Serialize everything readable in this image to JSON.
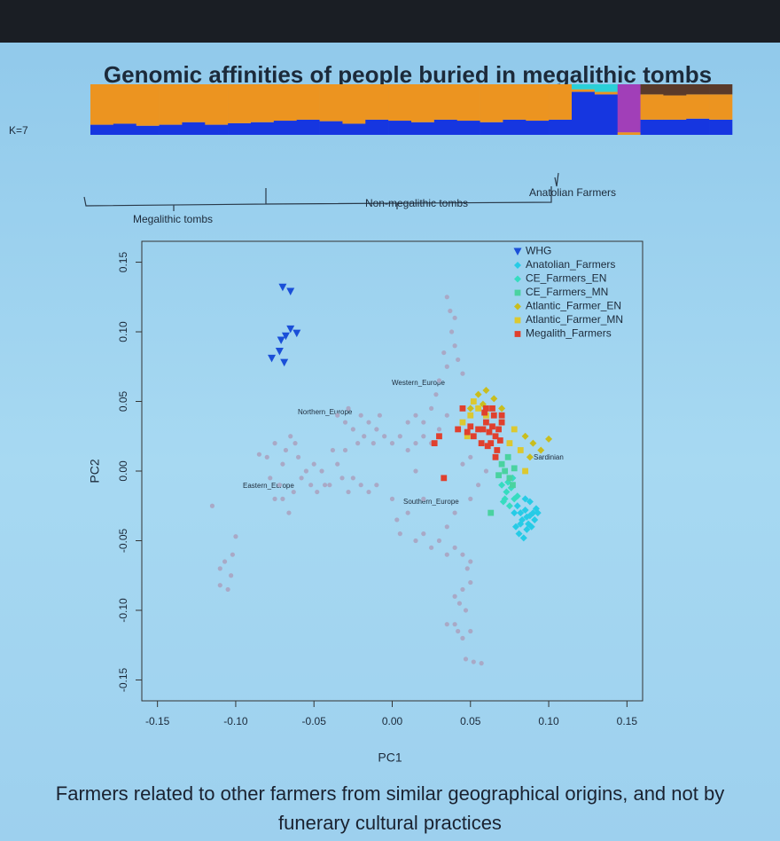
{
  "caption": "Farmers related to other farmers from similar geographical origins, and not by funerary cultural practices",
  "chart_data": [
    {
      "type": "bar",
      "stacked": true,
      "title": "Genomic affinities of people buried in megalithic tombs",
      "label": "K=7",
      "groups": [
        "Megalithic tombs",
        "Non-megalithic tombs",
        "Anatolian Farmers"
      ],
      "categories": [
        null,
        null,
        null,
        null,
        null,
        null,
        null,
        null,
        null,
        null,
        null,
        null,
        null,
        null,
        null,
        null,
        null,
        null,
        null,
        null,
        null,
        null,
        null,
        null,
        null,
        null,
        null,
        null
      ],
      "ylim": [
        0,
        1
      ],
      "series": [
        {
          "color": "#1636e0",
          "values": [
            0.2,
            0.22,
            0.18,
            0.2,
            0.25,
            0.2,
            0.23,
            0.25,
            0.28,
            0.3,
            0.27,
            0.22,
            0.3,
            0.28,
            0.25,
            0.3,
            0.28,
            0.25,
            0.3,
            0.28,
            0.3,
            0.85,
            0.8,
            0,
            0.3,
            0.3,
            0.32,
            0.3
          ]
        },
        {
          "color": "#ec9420",
          "values": [
            0.8,
            0.78,
            0.82,
            0.8,
            0.75,
            0.8,
            0.77,
            0.75,
            0.72,
            0.7,
            0.73,
            0.78,
            0.7,
            0.72,
            0.75,
            0.7,
            0.72,
            0.75,
            0.7,
            0.72,
            0.7,
            0.05,
            0.05,
            0.05,
            0.5,
            0.48,
            0.48,
            0.5
          ]
        },
        {
          "color": "#a13fb8",
          "values": [
            0,
            0,
            0,
            0,
            0,
            0,
            0,
            0,
            0,
            0,
            0,
            0,
            0,
            0,
            0,
            0,
            0,
            0,
            0,
            0,
            0,
            0,
            0,
            0.95,
            0,
            0,
            0,
            0
          ]
        },
        {
          "color": "#2ad0d8",
          "values": [
            0,
            0,
            0,
            0,
            0,
            0,
            0,
            0,
            0,
            0,
            0,
            0,
            0,
            0,
            0,
            0,
            0,
            0,
            0,
            0,
            0,
            0.1,
            0.15,
            0,
            0,
            0,
            0,
            0
          ]
        },
        {
          "color": "#5a3a2a",
          "values": [
            0,
            0,
            0,
            0,
            0,
            0,
            0,
            0,
            0,
            0,
            0,
            0,
            0,
            0,
            0,
            0,
            0,
            0,
            0,
            0,
            0,
            0,
            0,
            0,
            0.2,
            0.22,
            0.2,
            0.2
          ]
        }
      ]
    },
    {
      "type": "scatter",
      "xlabel": "PC1",
      "ylabel": "PC2",
      "legend": "upper right",
      "xlim": [
        -0.16,
        0.16
      ],
      "ylim": [
        -0.165,
        0.165
      ],
      "xticks": [
        -0.15,
        {
          "value": -0.1,
          "label": "-0.10"
        },
        -0.05,
        {
          "value": 0,
          "label": "0.00"
        },
        0.05,
        {
          "value": 0.1,
          "label": "0.10"
        },
        0.15
      ],
      "yticks": [
        -0.15,
        {
          "value": -0.1,
          "label": "-0.10"
        },
        -0.05,
        {
          "value": 0,
          "label": "0.00"
        },
        0.05,
        {
          "value": 0.1,
          "label": "0.10"
        },
        0.15
      ],
      "annotations": [
        "Western_Europe",
        "Northern_Europe",
        "Eastern_Europe",
        "Southern_Europe",
        "Sardinian"
      ],
      "series": [
        {
          "color": "#a9a9c6",
          "marker": "circle",
          "x": [
            -0.115,
            -0.11,
            -0.107,
            -0.105,
            -0.11,
            -0.102,
            -0.1,
            -0.103,
            -0.08,
            -0.078,
            -0.075,
            -0.072,
            -0.07,
            -0.068,
            -0.065,
            -0.062,
            -0.06,
            -0.058,
            -0.055,
            -0.052,
            -0.05,
            -0.048,
            -0.045,
            -0.043,
            -0.07,
            -0.066,
            -0.063,
            -0.075,
            -0.085,
            -0.035,
            -0.03,
            -0.028,
            -0.025,
            -0.02,
            -0.018,
            -0.015,
            -0.012,
            -0.01,
            -0.022,
            -0.03,
            -0.035,
            -0.032,
            -0.028,
            -0.025,
            -0.02,
            -0.015,
            -0.01,
            -0.04,
            -0.038,
            -0.005,
            0,
            0.005,
            0.01,
            0.015,
            -0.008,
            0.035,
            0.037,
            0.04,
            0.038,
            0.04,
            0.042,
            0.035,
            0.03,
            0.028,
            0.025,
            0.02,
            0.02,
            0.025,
            0.03,
            0.035,
            0.01,
            0.015,
            0.045,
            0.033,
            0,
            0.003,
            0.005,
            0.01,
            0.015,
            0.02,
            0.025,
            0.03,
            0.035,
            0.04,
            0.045,
            0.048,
            0.05,
            0.05,
            0.045,
            0.043,
            0.047,
            0.04,
            0.042,
            0.045,
            0.035,
            0.05,
            0.047,
            0.052,
            0.057,
            0.04,
            0.035,
            0.04,
            0.05,
            0.055,
            0.06,
            0.02,
            0.045,
            0.05,
            0.015
          ],
          "values": [
            -0.025,
            -0.07,
            -0.065,
            -0.085,
            -0.082,
            -0.06,
            -0.047,
            -0.075,
            0.01,
            -0.005,
            -0.02,
            -0.01,
            0.005,
            0.015,
            0.025,
            0.02,
            0.01,
            -0.005,
            0,
            -0.01,
            0.005,
            -0.015,
            0,
            -0.01,
            -0.02,
            -0.03,
            -0.015,
            0.02,
            0.012,
            0.04,
            0.035,
            0.045,
            0.03,
            0.04,
            0.025,
            0.035,
            0.02,
            0.03,
            0.02,
            0.015,
            0.005,
            -0.005,
            -0.015,
            -0.005,
            -0.01,
            -0.015,
            -0.01,
            -0.01,
            0.015,
            0.025,
            0.02,
            0.025,
            0.015,
            0.02,
            0.04,
            0.125,
            0.115,
            0.11,
            0.1,
            0.09,
            0.08,
            0.075,
            0.065,
            0.055,
            0.045,
            0.035,
            0.025,
            0.02,
            0.03,
            0.04,
            0.035,
            0.04,
            0.07,
            0.085,
            -0.02,
            -0.035,
            -0.045,
            -0.03,
            -0.05,
            -0.045,
            -0.055,
            -0.05,
            -0.06,
            -0.055,
            -0.06,
            -0.07,
            -0.065,
            -0.08,
            -0.085,
            -0.095,
            -0.1,
            -0.11,
            -0.115,
            -0.12,
            -0.11,
            -0.115,
            -0.135,
            -0.137,
            -0.138,
            -0.09,
            -0.04,
            -0.03,
            -0.02,
            -0.01,
            0,
            -0.02,
            0.005,
            0.01,
            0
          ]
        },
        {
          "name": "WHG",
          "color": "#1a4fd8",
          "marker": "triangle",
          "x": [
            -0.07,
            -0.065,
            -0.065,
            -0.061,
            -0.068,
            -0.077,
            -0.072,
            -0.069,
            -0.071
          ],
          "values": [
            0.132,
            0.129,
            0.102,
            0.099,
            0.097,
            0.081,
            0.086,
            0.078,
            0.094
          ]
        },
        {
          "name": "Anatolian_Farmers",
          "color": "#26cbe6",
          "marker": "diamond",
          "x": [
            0.08,
            0.082,
            0.085,
            0.088,
            0.09,
            0.092,
            0.087,
            0.083,
            0.086,
            0.089,
            0.078,
            0.081,
            0.084,
            0.091,
            0.093,
            0.088,
            0.085,
            0.082,
            0.079,
            0.086
          ],
          "values": [
            -0.025,
            -0.03,
            -0.028,
            -0.032,
            -0.03,
            -0.027,
            -0.038,
            -0.035,
            -0.042,
            -0.04,
            -0.03,
            -0.045,
            -0.048,
            -0.035,
            -0.03,
            -0.022,
            -0.02,
            -0.038,
            -0.04,
            -0.033
          ]
        },
        {
          "name": "CE_Farmers_EN",
          "color": "#36dcc0",
          "marker": "diamond",
          "x": [
            0.07,
            0.073,
            0.076,
            0.078,
            0.08,
            0.075,
            0.072,
            0.077,
            0.074,
            0.071
          ],
          "values": [
            -0.01,
            -0.015,
            -0.012,
            -0.02,
            -0.018,
            -0.025,
            -0.02,
            -0.005,
            -0.008,
            -0.022
          ]
        },
        {
          "name": "CE_Farmers_MN",
          "color": "#4ad2a0",
          "marker": "square",
          "x": [
            0.072,
            0.075,
            0.078,
            0.07,
            0.068,
            0.074,
            0.077,
            0.063
          ],
          "values": [
            0.0,
            -0.005,
            0.002,
            0.005,
            -0.003,
            0.01,
            -0.01,
            -0.03
          ]
        },
        {
          "name": "Atlantic_Farmer_EN",
          "color": "#c9bd1e",
          "marker": "diamond",
          "x": [
            0.055,
            0.06,
            0.065,
            0.058,
            0.09,
            0.1,
            0.085,
            0.088,
            0.095,
            0.05,
            0.07
          ],
          "values": [
            0.055,
            0.058,
            0.052,
            0.048,
            0.02,
            0.023,
            0.025,
            0.01,
            0.015,
            0.045,
            0.045
          ]
        },
        {
          "name": "Atlantic_Farmer_MN",
          "color": "#dcc830",
          "marker": "square",
          "x": [
            0.045,
            0.05,
            0.055,
            0.06,
            0.048,
            0.07,
            0.075,
            0.078,
            0.052,
            0.082,
            0.085
          ],
          "values": [
            0.035,
            0.04,
            0.045,
            0.04,
            0.025,
            0.035,
            0.02,
            0.03,
            0.05,
            0.015,
            0.0
          ]
        },
        {
          "name": "Megalith_Farmers",
          "color": "#e0402e",
          "marker": "square",
          "x": [
            0.058,
            0.06,
            0.062,
            0.064,
            0.066,
            0.068,
            0.07,
            0.065,
            0.063,
            0.061,
            0.067,
            0.069,
            0.059,
            0.055,
            0.057,
            0.05,
            0.052,
            0.048,
            0.045,
            0.06,
            0.064,
            0.066,
            0.027,
            0.03,
            0.033,
            0.042,
            0.07
          ],
          "values": [
            0.03,
            0.035,
            0.028,
            0.032,
            0.025,
            0.03,
            0.035,
            0.04,
            0.02,
            0.018,
            0.015,
            0.022,
            0.042,
            0.03,
            0.02,
            0.032,
            0.025,
            0.028,
            0.045,
            0.045,
            0.045,
            0.01,
            0.02,
            0.025,
            -0.005,
            0.03,
            0.04
          ]
        }
      ]
    }
  ]
}
